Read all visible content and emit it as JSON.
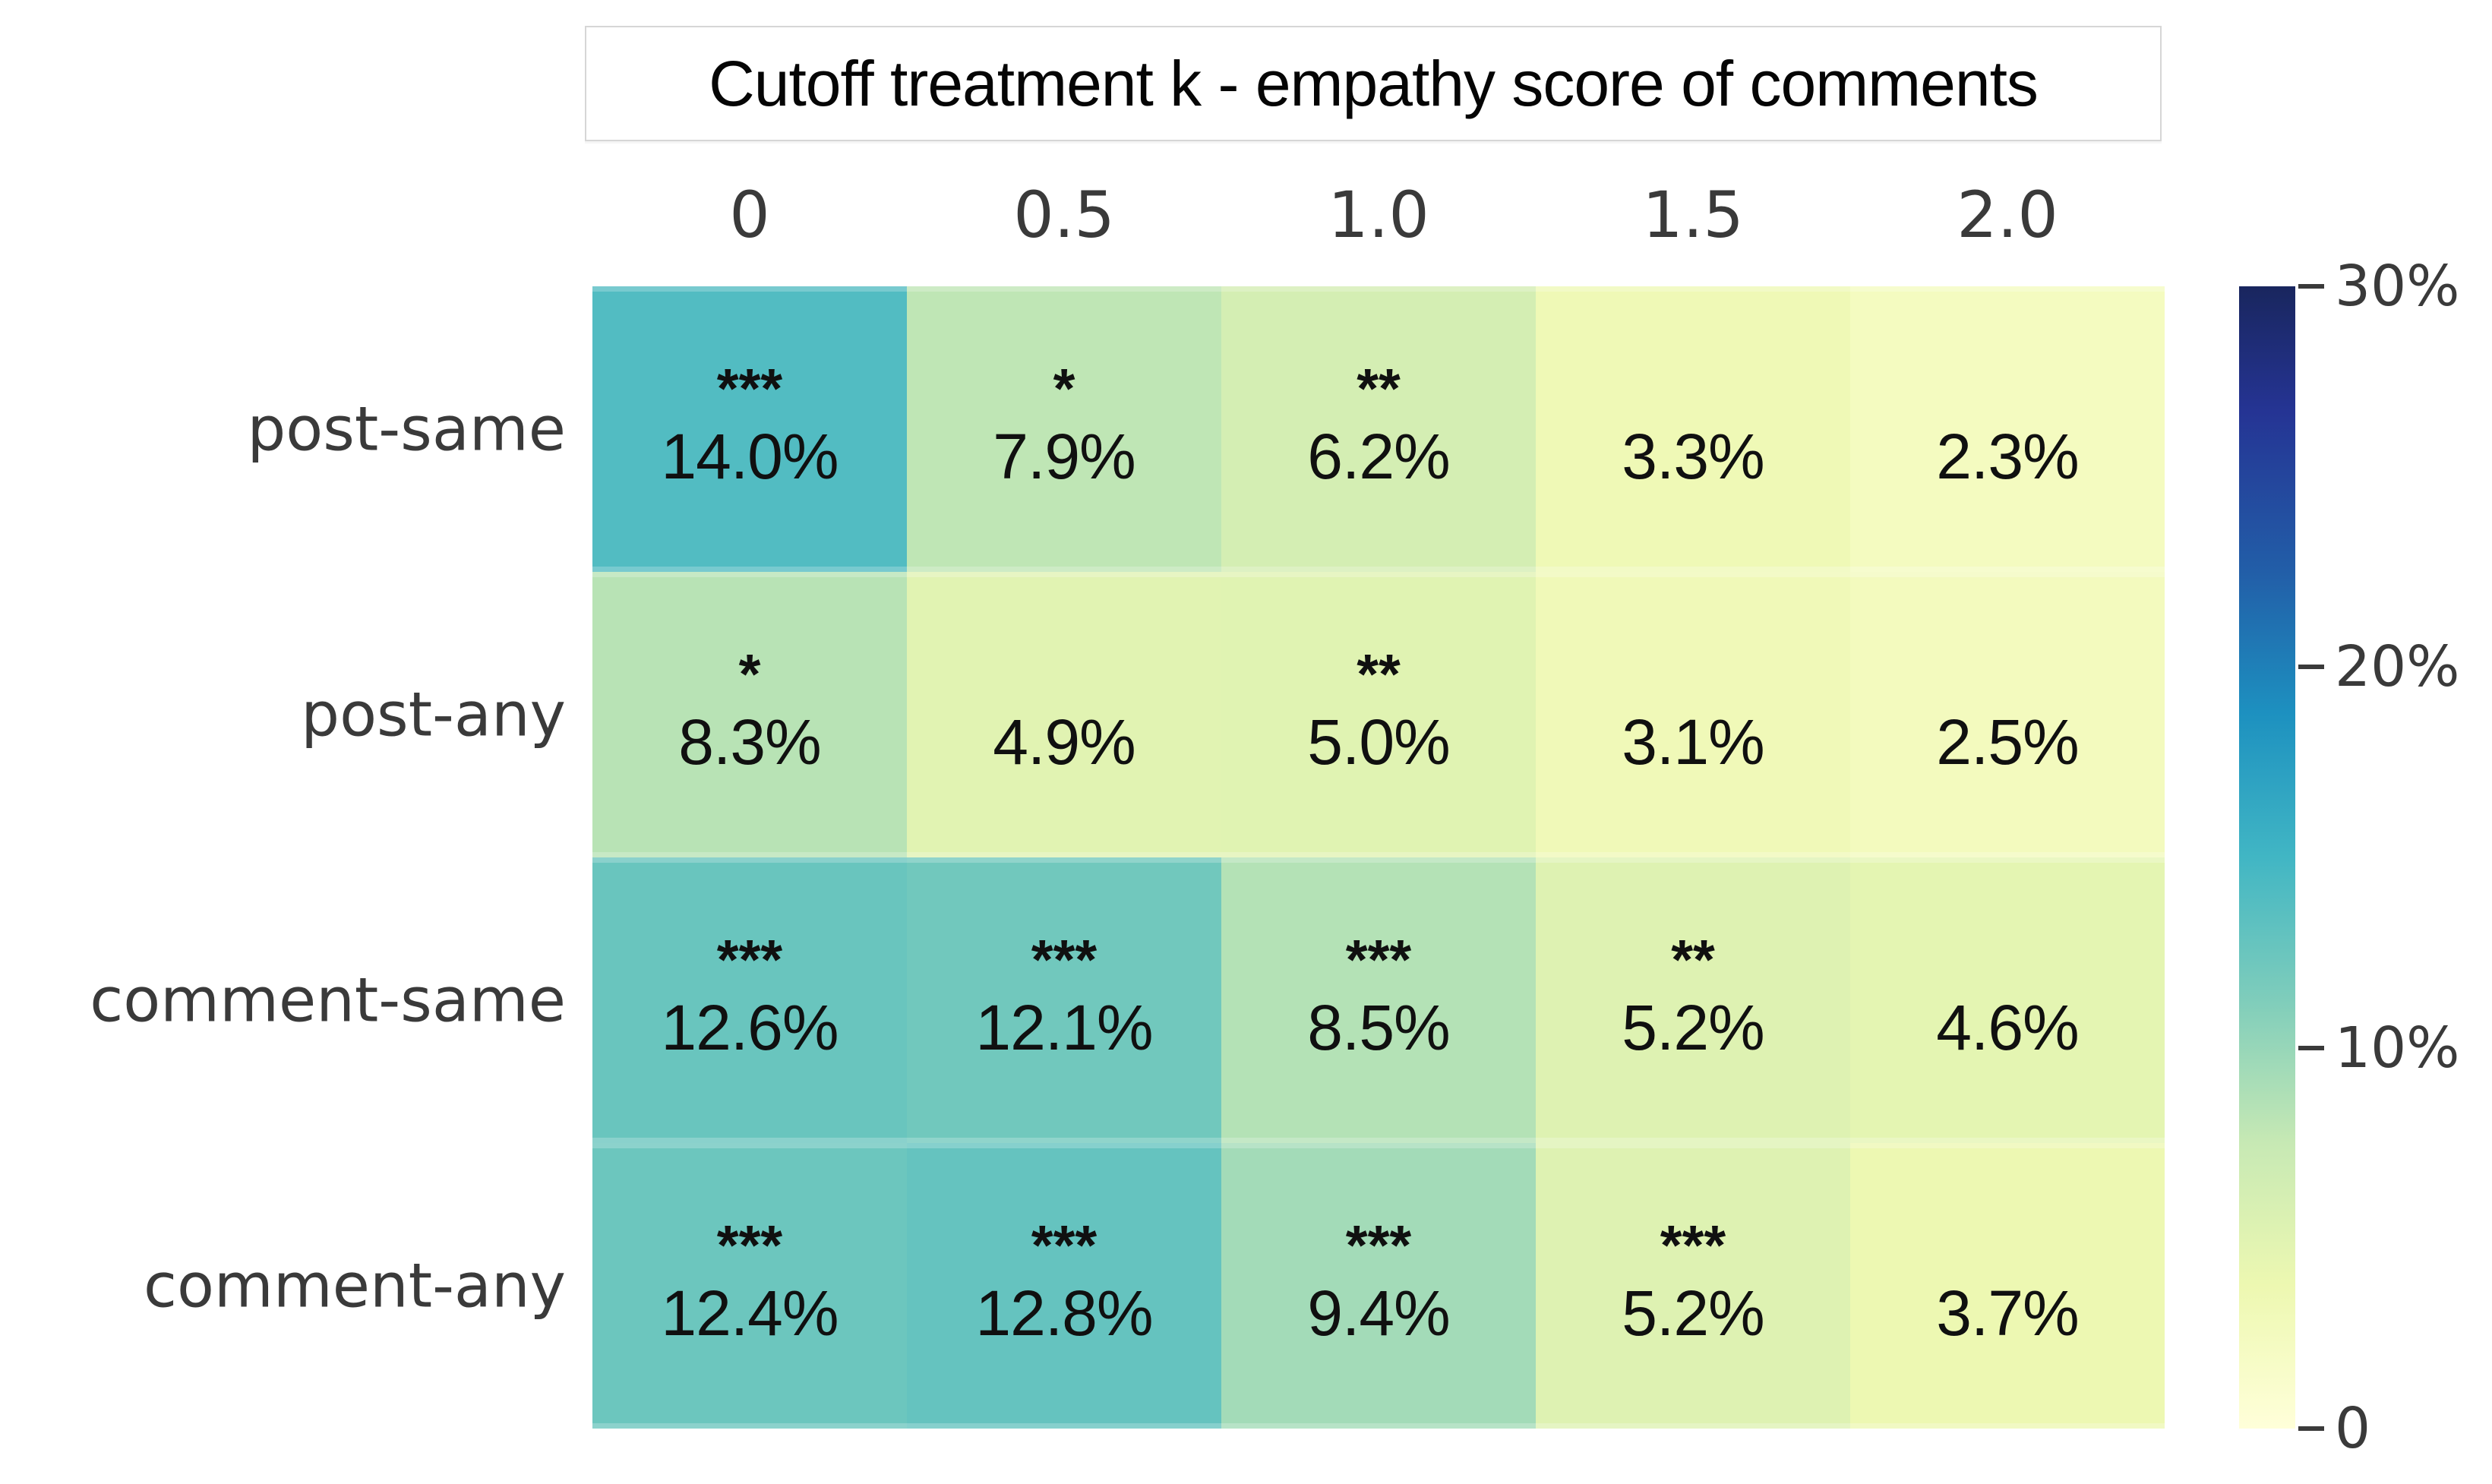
{
  "title": "Cutoff treatment k - empathy score of comments",
  "chart_data": {
    "type": "heatmap",
    "title": "Cutoff treatment k - empathy score of comments",
    "columns": [
      "0",
      "0.5",
      "1.0",
      "1.5",
      "2.0"
    ],
    "rows": [
      "post-same",
      "post-any",
      "comment-same",
      "comment-any"
    ],
    "values_percent": [
      [
        14.0,
        7.9,
        6.2,
        3.3,
        2.3
      ],
      [
        8.3,
        4.9,
        5.0,
        3.1,
        2.5
      ],
      [
        12.6,
        12.1,
        8.5,
        5.2,
        4.6
      ],
      [
        12.4,
        12.8,
        9.4,
        5.2,
        3.7
      ]
    ],
    "cell_labels": [
      [
        "14.0%",
        "7.9%",
        "6.2%",
        "3.3%",
        "2.3%"
      ],
      [
        "8.3%",
        "4.9%",
        "5.0%",
        "3.1%",
        "2.5%"
      ],
      [
        "12.6%",
        "12.1%",
        "8.5%",
        "5.2%",
        "4.6%"
      ],
      [
        "12.4%",
        "12.8%",
        "9.4%",
        "5.2%",
        "3.7%"
      ]
    ],
    "significance": [
      [
        "***",
        "*",
        "**",
        "",
        ""
      ],
      [
        "*",
        "",
        "**",
        "",
        ""
      ],
      [
        "***",
        "***",
        "***",
        "**",
        ""
      ],
      [
        "***",
        "***",
        "***",
        "***",
        ""
      ]
    ],
    "colormap": "YlGnBu",
    "grid": false,
    "legend_position": "right",
    "colorbar": {
      "min": 0,
      "max": 30,
      "ticks": [
        {
          "label": "30%",
          "value": 30
        },
        {
          "label": "20%",
          "value": 20
        },
        {
          "label": "10%",
          "value": 10
        },
        {
          "label": "0",
          "value": 0
        }
      ],
      "top_color": "#19265e",
      "bottom_color": "#ffffd9"
    }
  }
}
